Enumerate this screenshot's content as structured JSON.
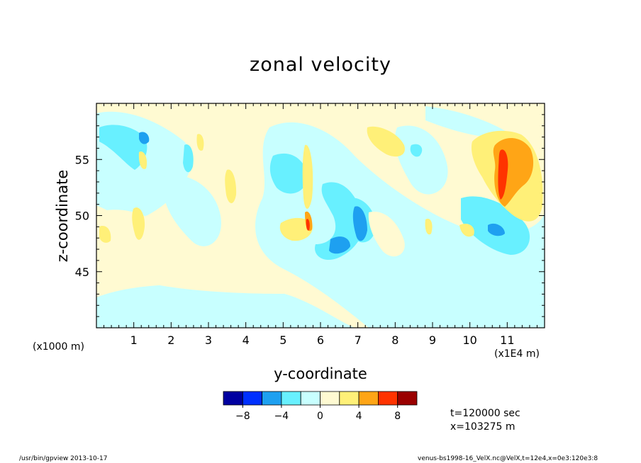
{
  "chart_data": {
    "type": "heatmap",
    "title": "zonal velocity",
    "xlabel": "y-coordinate",
    "ylabel": "z-coordinate",
    "x_scale_note": "(x1E4 m)",
    "y_scale_note": "(x1000 m)",
    "xlim": [
      0,
      12
    ],
    "ylim": [
      40,
      60
    ],
    "x_ticks": [
      1,
      2,
      3,
      4,
      5,
      6,
      7,
      8,
      9,
      10,
      11
    ],
    "y_ticks": [
      45,
      50,
      55
    ],
    "x_tick_labels": [
      "1",
      "2",
      "3",
      "4",
      "5",
      "6",
      "7",
      "8",
      "9",
      "10",
      "11"
    ],
    "y_tick_labels": [
      "45",
      "50",
      "55"
    ],
    "colorbar": {
      "levels": [
        -10,
        -8,
        -6,
        -4,
        -2,
        0,
        2,
        4,
        6,
        8,
        10
      ],
      "colors": [
        "#0000a0",
        "#0030ff",
        "#1ea0f0",
        "#68f0ff",
        "#c8ffff",
        "#fffad2",
        "#fff078",
        "#ffa516",
        "#ff3300",
        "#9a0000"
      ],
      "tick_values": [
        -8,
        -4,
        0,
        4,
        8
      ],
      "tick_labels": [
        "−8",
        "−4",
        "0",
        "4",
        "8"
      ]
    },
    "features": [
      {
        "y": 1.15,
        "z": 56.9,
        "value": -7,
        "ry": 0.1,
        "rz": 0.6
      },
      {
        "y": 6.7,
        "z": 47.8,
        "value": -7,
        "ry": 0.3,
        "rz": 0.8
      },
      {
        "y": 7.1,
        "z": 50.0,
        "value": -7,
        "ry": 0.15,
        "rz": 1.5
      },
      {
        "y": 10.7,
        "z": 48.9,
        "value": -7,
        "ry": 0.25,
        "rz": 0.6
      },
      {
        "y": 11.0,
        "z": 53.0,
        "value": 7,
        "ry": 0.15,
        "rz": 2.4
      },
      {
        "y": 11.2,
        "z": 54.3,
        "value": 5,
        "ry": 0.5,
        "rz": 2.3
      },
      {
        "y": 5.75,
        "z": 49.6,
        "value": 6,
        "ry": 0.1,
        "rz": 1.1
      }
    ],
    "annotations": [
      "t=120000 sec",
      "x=103275 m"
    ]
  },
  "footer": {
    "left": "/usr/bin/gpview   2013-10-17",
    "right": "venus-bs1998-16_VelX.nc@VelX,t=12e4,x=0e3:120e3:8"
  }
}
